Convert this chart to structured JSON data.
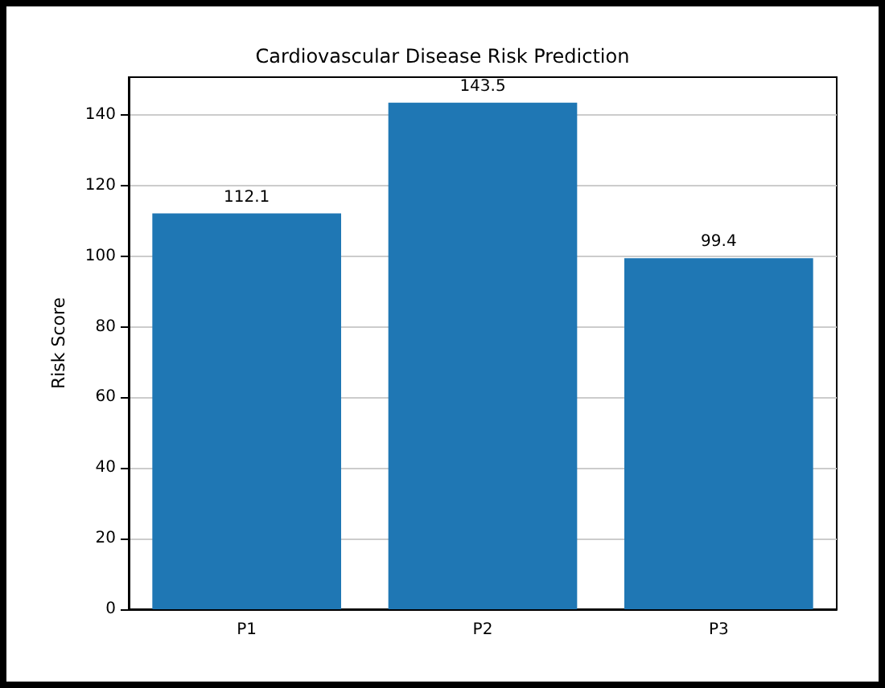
{
  "chart_data": {
    "type": "bar",
    "title": "Cardiovascular Disease Risk Prediction",
    "ylabel": "Risk Score",
    "categories": [
      "P1",
      "P2",
      "P3"
    ],
    "values": [
      112.1,
      143.5,
      99.4
    ],
    "color": "#1f77b4",
    "ylim": [
      0,
      150.7
    ],
    "yticks": [
      0,
      20,
      40,
      60,
      80,
      100,
      120,
      140
    ],
    "grid": "y",
    "data_labels": true
  }
}
